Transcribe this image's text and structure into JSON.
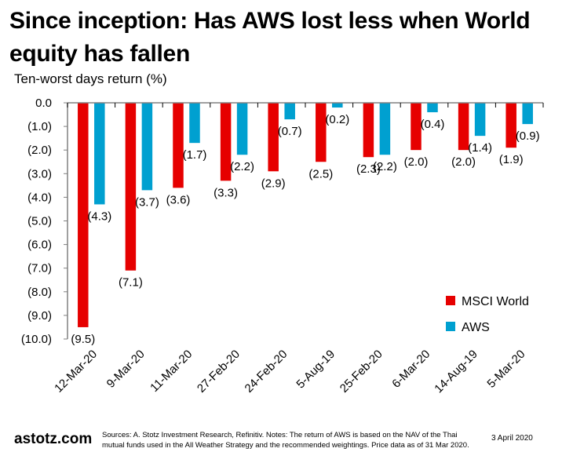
{
  "header": {
    "title": "Since inception: Has AWS lost less when World equity has fallen",
    "subtitle": "Ten-worst days return (%)"
  },
  "footer": {
    "brand": "astotz.com",
    "note": "Sources: A. Stotz Investment Research, Refinitiv. Notes: The return of AWS is based on the NAV of the Thai mutual funds used in the All Weather Strategy and the recommended weightings. Price data as of 31 Mar 2020.",
    "date": "3 April 2020"
  },
  "chart_data": {
    "type": "bar",
    "title": "Since inception: Has AWS lost less when World equity has fallen",
    "ylabel": "Ten-worst days return (%)",
    "xlabel": "",
    "categories": [
      "12-Mar-20",
      "9-Mar-20",
      "11-Mar-20",
      "27-Feb-20",
      "24-Feb-20",
      "5-Aug-19",
      "25-Feb-20",
      "6-Mar-20",
      "14-Aug-19",
      "5-Mar-20"
    ],
    "series": [
      {
        "name": "MSCI World",
        "color": "#e60000",
        "values": [
          -9.5,
          -7.1,
          -3.6,
          -3.3,
          -2.9,
          -2.5,
          -2.3,
          -2.0,
          -2.0,
          -1.9
        ]
      },
      {
        "name": "AWS",
        "color": "#00a0d0",
        "values": [
          -4.3,
          -3.7,
          -1.7,
          -2.2,
          -0.7,
          -0.2,
          -2.2,
          -0.4,
          -1.4,
          -0.9
        ]
      }
    ],
    "ylim": [
      -10.0,
      0.0
    ],
    "yticks": [
      0,
      -1,
      -2,
      -3,
      -4,
      -5,
      -6,
      -7,
      -8,
      -9,
      -10
    ],
    "ytick_labels": [
      "0.0",
      "(1.0)",
      "(2.0)",
      "(3.0)",
      "(4.0)",
      "(5.0)",
      "(6.0)",
      "(7.0)",
      "(8.0)",
      "(9.0)",
      "(10.0)"
    ],
    "data_labels": {
      "MSCI World": [
        "(9.5)",
        "(7.1)",
        "(3.6)",
        "(3.3)",
        "(2.9)",
        "(2.5)",
        "(2.3)",
        "(2.0)",
        "(2.0)",
        "(1.9)"
      ],
      "AWS": [
        "(4.3)",
        "(3.7)",
        "(1.7)",
        "(2.2)",
        "(0.7)",
        "(0.2)",
        "(2.2)",
        "(0.4)",
        "(1.4)",
        "(0.9)"
      ]
    },
    "grid": false,
    "legend": {
      "position": "bottom-right",
      "entries": [
        "MSCI World",
        "AWS"
      ]
    },
    "axis_color": "#808080"
  }
}
